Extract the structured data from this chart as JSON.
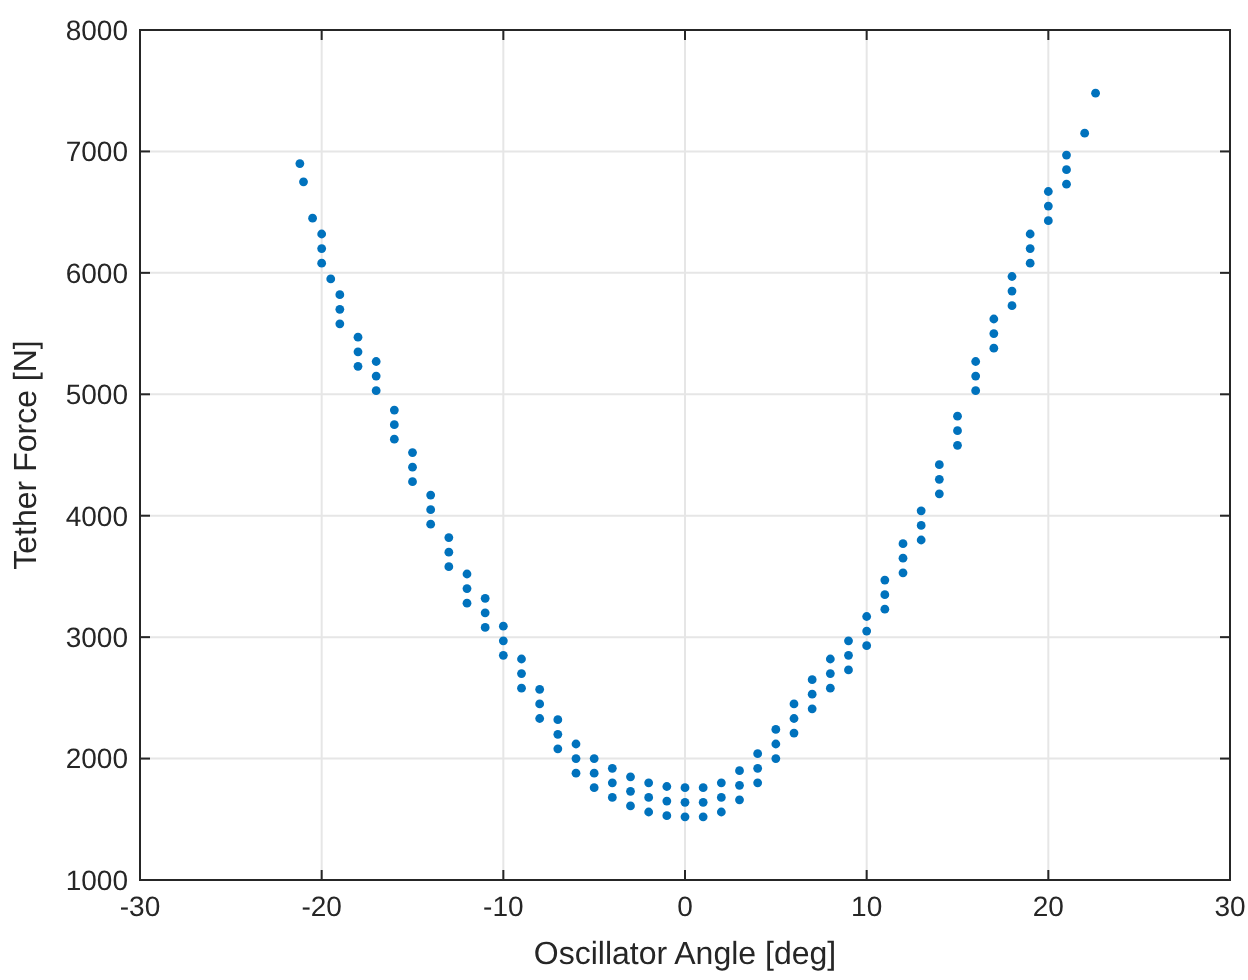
{
  "chart_data": {
    "type": "scatter",
    "xlabel": "Oscillator Angle [deg]",
    "ylabel": "Tether Force [N]",
    "xlim": [
      -30,
      30
    ],
    "xticks": [
      -30,
      -20,
      -10,
      0,
      10,
      20,
      30
    ],
    "ylim": [
      1000,
      8000
    ],
    "yticks": [
      1000,
      2000,
      3000,
      4000,
      5000,
      6000,
      7000,
      8000
    ],
    "grid": true,
    "marker": "circle",
    "series": [
      {
        "color": "#0072bd",
        "x": [
          -21.2,
          -21,
          -20.5,
          -20,
          -19.5,
          -19,
          -18,
          -17,
          -16,
          -15,
          -14,
          -13,
          -12,
          -11,
          -10,
          -9,
          -8,
          -7,
          -6,
          -5,
          -4,
          -3,
          -2,
          -1,
          0,
          1,
          2,
          3,
          4,
          5,
          6,
          7,
          8,
          9,
          10,
          11,
          12,
          13,
          14,
          15,
          16,
          17,
          18,
          19,
          20,
          21,
          22,
          22.6,
          -20,
          -19,
          -18,
          -17,
          -16,
          -15,
          -14,
          -13,
          -12,
          -11,
          -10,
          -9,
          -8,
          -7,
          -6,
          -5,
          -4,
          -3,
          -2,
          -1,
          0,
          1,
          2,
          3,
          4,
          5,
          6,
          7,
          8,
          9,
          10,
          11,
          12,
          13,
          14,
          15,
          16,
          17,
          18,
          19,
          20,
          21,
          -20,
          -19,
          -18,
          -17,
          -16,
          -15,
          -14,
          -13,
          -12,
          -11,
          -10,
          -9,
          -8,
          -7,
          -6,
          -5,
          -4,
          -3,
          -2,
          -1,
          0,
          1,
          2,
          3,
          4,
          5,
          6,
          7,
          8,
          9,
          10,
          11,
          12,
          13,
          14,
          15,
          16,
          17,
          18,
          19,
          20,
          21
        ],
        "values": [
          6900,
          6750,
          6450,
          6200,
          5950,
          5700,
          5350,
          5150,
          4750,
          4400,
          4050,
          3700,
          3400,
          3200,
          2970,
          2700,
          2450,
          2200,
          2000,
          1880,
          1800,
          1730,
          1680,
          1650,
          1640,
          1640,
          1680,
          1780,
          1920,
          2120,
          2330,
          2530,
          2700,
          2850,
          3050,
          3350,
          3650,
          3920,
          4300,
          4700,
          5150,
          5500,
          5850,
          6200,
          6550,
          6850,
          7150,
          7480,
          6080,
          5580,
          5230,
          5030,
          4630,
          4280,
          3930,
          3580,
          3280,
          3080,
          2850,
          2580,
          2330,
          2080,
          1880,
          1760,
          1680,
          1610,
          1560,
          1530,
          1520,
          1520,
          1560,
          1660,
          1800,
          2000,
          2210,
          2410,
          2580,
          2730,
          2930,
          3230,
          3530,
          3800,
          4180,
          4580,
          5030,
          5380,
          5730,
          6080,
          6430,
          6730,
          6320,
          5820,
          5470,
          5270,
          4870,
          4520,
          4170,
          3820,
          3520,
          3320,
          3090,
          2820,
          2570,
          2320,
          2120,
          2000,
          1920,
          1850,
          1800,
          1770,
          1760,
          1760,
          1800,
          1900,
          2040,
          2240,
          2450,
          2650,
          2820,
          2970,
          3170,
          3470,
          3770,
          4040,
          4420,
          4820,
          5270,
          5620,
          5970,
          6320,
          6670,
          6970
        ]
      }
    ]
  }
}
